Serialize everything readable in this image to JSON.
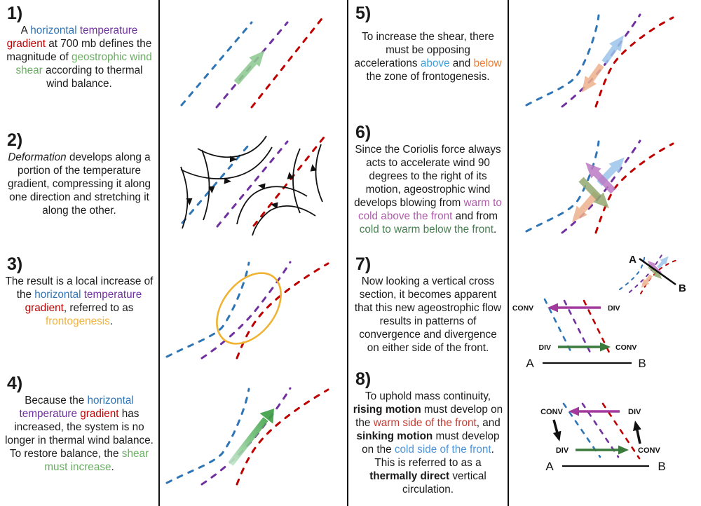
{
  "labels": {
    "conv": "CONV",
    "div": "DIV",
    "a": "A",
    "b": "B"
  },
  "colors": {
    "cold_air_blue": "#2E75B6",
    "front_purple": "#7030A0",
    "warm_air_red": "#C00000",
    "shear_green": "#6AAE62",
    "frontogenesis_gold": "#EFB23C",
    "above_blue": "#3E9FDB",
    "below_orange": "#ED7D31",
    "warm_to_cold_magenta": "#B05CAB",
    "cold_to_warm_green": "#478050",
    "ageostrophic_magenta": "#A23A9E",
    "ageostrophic_dark_green": "#3A7A3C"
  },
  "panels": [
    {
      "number": "1)",
      "segments": [
        {
          "t": "A "
        },
        {
          "t": "horizontal",
          "c": "#2E75B6"
        },
        {
          "t": " "
        },
        {
          "t": "temperature",
          "c": "#7030A0"
        },
        {
          "t": " "
        },
        {
          "t": "gradient",
          "c": "#C00000"
        },
        {
          "t": " at 700 mb defines the magnitude of "
        },
        {
          "t": "geostrophic wind shear",
          "c": "#6AAE62"
        },
        {
          "t": " according to thermal wind balance."
        }
      ]
    },
    {
      "number": "2)",
      "segments": [
        {
          "t": "Deformation",
          "i": true
        },
        {
          "t": " develops along a portion of the temperature gradient, compressing it along one direction and stretching it along the other."
        }
      ]
    },
    {
      "number": "3)",
      "segments": [
        {
          "t": "The result is a local increase of the "
        },
        {
          "t": "horizontal",
          "c": "#2E75B6"
        },
        {
          "t": " "
        },
        {
          "t": "temperature",
          "c": "#7030A0"
        },
        {
          "t": " "
        },
        {
          "t": "gradient",
          "c": "#C00000"
        },
        {
          "t": ", referred to as "
        },
        {
          "t": "frontogenesis",
          "c": "#EFB23C"
        },
        {
          "t": "."
        }
      ]
    },
    {
      "number": "4)",
      "segments": [
        {
          "t": "Because the "
        },
        {
          "t": "horizontal",
          "c": "#2E75B6"
        },
        {
          "t": " "
        },
        {
          "t": "temperature",
          "c": "#7030A0"
        },
        {
          "t": " "
        },
        {
          "t": "gradient",
          "c": "#C00000"
        },
        {
          "t": " has increased, the system is no longer in thermal wind balance. To restore balance, the "
        },
        {
          "t": "shear must increase",
          "c": "#6AAE62"
        },
        {
          "t": "."
        }
      ]
    },
    {
      "number": "5)",
      "segments": [
        {
          "t": "To increase the shear, there must be opposing accelerations "
        },
        {
          "t": "above",
          "c": "#3E9FDB"
        },
        {
          "t": " and "
        },
        {
          "t": "below",
          "c": "#ED7D31"
        },
        {
          "t": " the zone of frontogenesis."
        }
      ]
    },
    {
      "number": "6)",
      "segments": [
        {
          "t": "Since the Coriolis force always acts to accelerate wind 90 degrees to the right of its motion, ageostrophic wind develops blowing from "
        },
        {
          "t": "warm to cold above the front",
          "c": "#B05CAB"
        },
        {
          "t": " and from "
        },
        {
          "t": "cold to warm below the front",
          "c": "#478050"
        },
        {
          "t": "."
        }
      ]
    },
    {
      "number": "7)",
      "segments": [
        {
          "t": "Now looking a vertical cross section, it becomes apparent that this new ageostrophic flow results in patterns of convergence and divergence on either side of the front."
        }
      ]
    },
    {
      "number": "8)",
      "segments": [
        {
          "t": "To uphold mass continuity, "
        },
        {
          "t": "rising motion",
          "b": true
        },
        {
          "t": " must develop on the "
        },
        {
          "t": "warm side of the front",
          "c": "#C73A31"
        },
        {
          "t": ", and "
        },
        {
          "t": "sinking motion",
          "b": true
        },
        {
          "t": " must develop on the "
        },
        {
          "t": "cold side of the front",
          "c": "#4D94DB"
        },
        {
          "t": ". This is referred to as a "
        },
        {
          "t": "thermally direct",
          "b": true
        },
        {
          "t": " vertical circulation."
        }
      ]
    }
  ]
}
